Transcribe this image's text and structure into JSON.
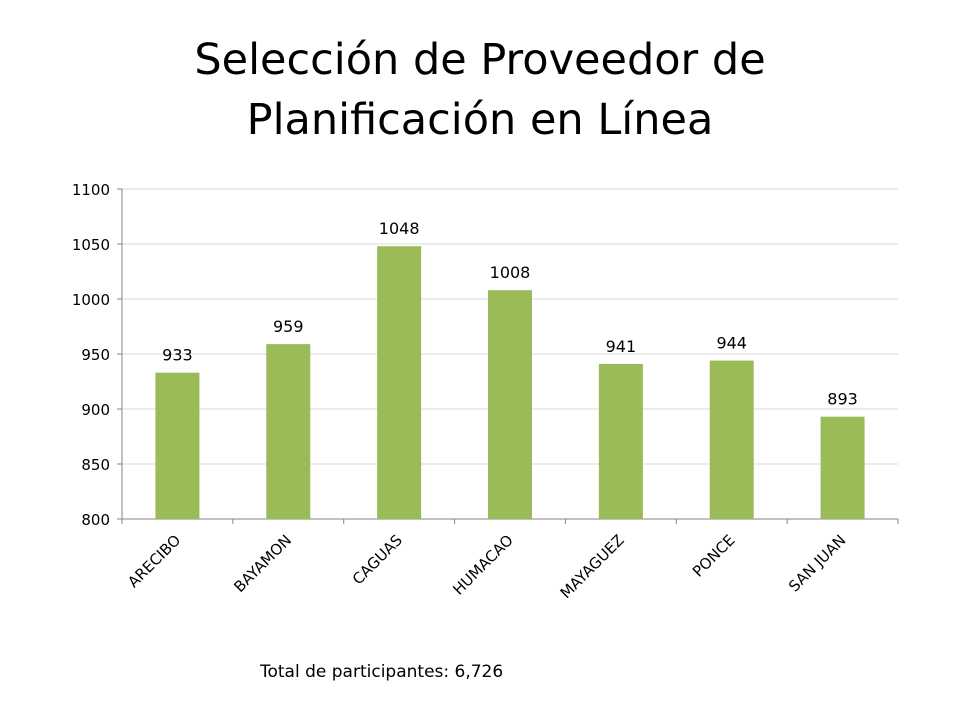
{
  "slide": {
    "title_line1": "Selección de Proveedor de",
    "title_line2": "Planificación en Línea",
    "footnote": "Total de participantes: 6,726"
  },
  "colors": {
    "bar": "#9BBB59",
    "gridline": "#D9D9D9",
    "axis": "#868686",
    "text": "#000000"
  },
  "chart_data": {
    "type": "bar",
    "title": "Selección de Proveedor de Planificación en Línea",
    "categories": [
      "ARECIBO",
      "BAYAMON",
      "CAGUAS",
      "HUMACAO",
      "MAYAGUEZ",
      "PONCE",
      "SAN JUAN"
    ],
    "values": [
      933,
      959,
      1048,
      1008,
      941,
      944,
      893
    ],
    "ylim": [
      800,
      1100
    ],
    "yticks": [
      800,
      850,
      900,
      950,
      1000,
      1050,
      1100
    ],
    "xlabel": "",
    "ylabel": "",
    "grid": true,
    "legend": "none",
    "data_labels": true
  }
}
